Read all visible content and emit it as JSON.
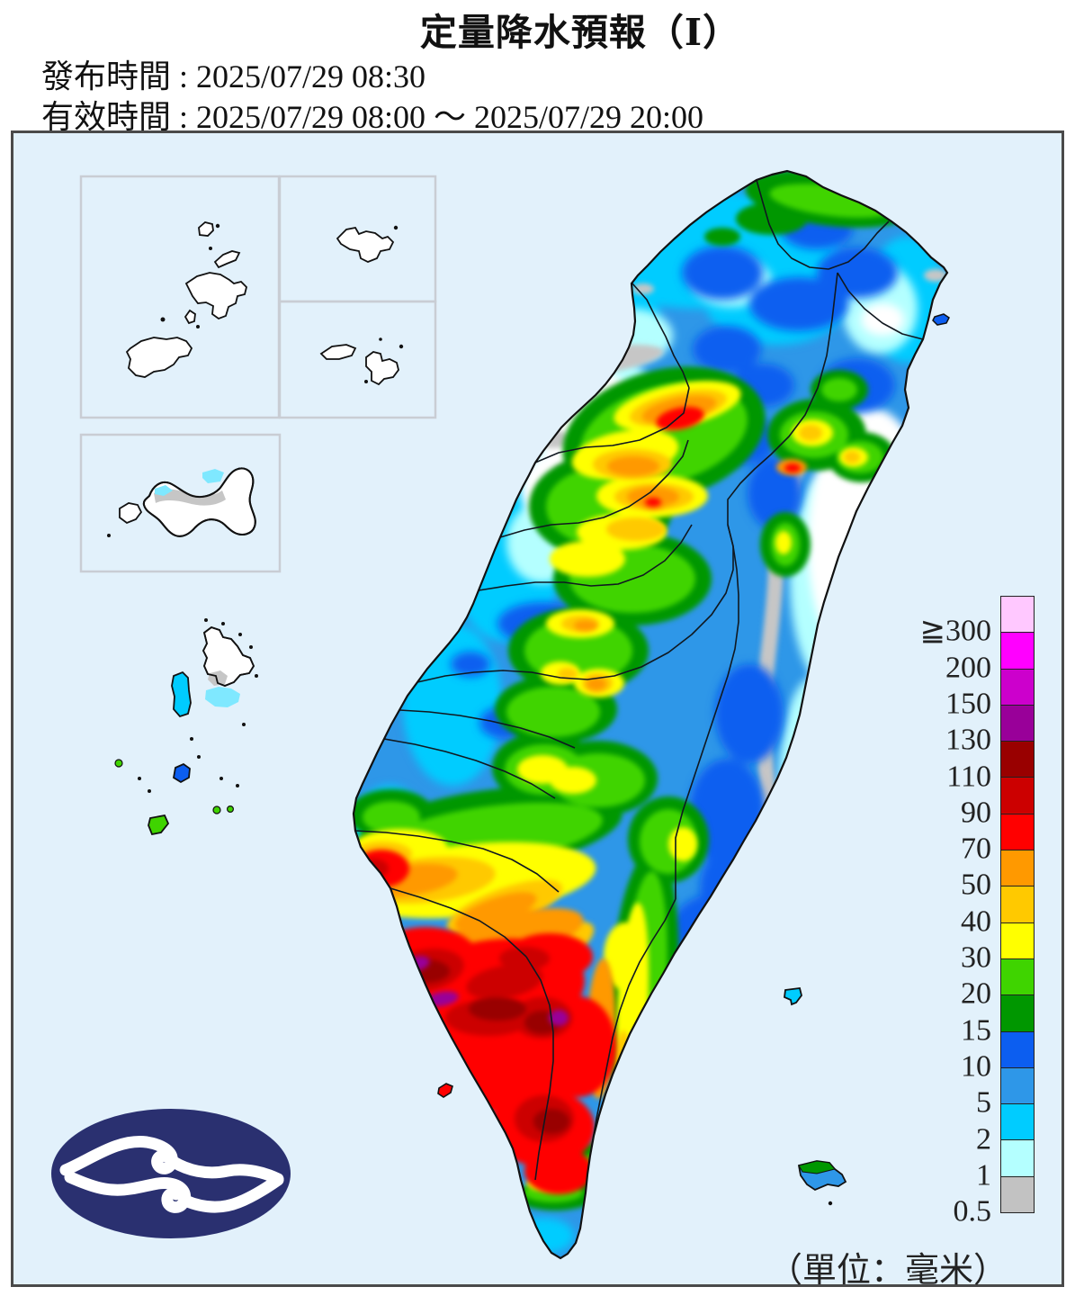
{
  "header": {
    "title": "定量降水預報（Ⅰ）",
    "issued": "發布時間 : 2025/07/29 08:30",
    "valid": "有效時間 : 2025/07/29 08:00 ～ 2025/07/29 20:00"
  },
  "legend": {
    "unit": "（單位：毫米）",
    "entries": [
      {
        "label": "≧300",
        "color": "#FFC8FF"
      },
      {
        "label": "200",
        "color": "#FF00FF"
      },
      {
        "label": "150",
        "color": "#CC00CC"
      },
      {
        "label": "130",
        "color": "#990099"
      },
      {
        "label": "110",
        "color": "#990000"
      },
      {
        "label": "90",
        "color": "#CC0000"
      },
      {
        "label": "70",
        "color": "#FF0000"
      },
      {
        "label": "50",
        "color": "#FF9900"
      },
      {
        "label": "40",
        "color": "#FFC900"
      },
      {
        "label": "30",
        "color": "#FFFF00"
      },
      {
        "label": "20",
        "color": "#3FD400"
      },
      {
        "label": "15",
        "color": "#009700"
      },
      {
        "label": "10",
        "color": "#0C5EF0"
      },
      {
        "label": "5",
        "color": "#2E97E8"
      },
      {
        "label": "2",
        "color": "#00CCFF"
      },
      {
        "label": "1",
        "color": "#B4FFFF"
      },
      {
        "label": "0.5",
        "color": "#C2C2C2"
      }
    ]
  },
  "map": {
    "sea_background": "#E2F1FB",
    "frame_color": "#4A4A4A",
    "inset_border_color": "#C9CDD4",
    "logo_color": "#2A3070"
  }
}
